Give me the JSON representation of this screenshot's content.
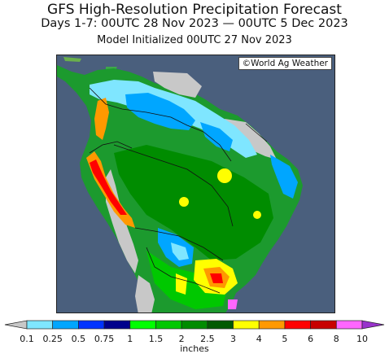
{
  "header": {
    "title": "GFS High-Resolution Precipitation Forecast",
    "period": "Days 1-7: 00UTC 28 Nov 2023 — 00UTC 5 Dec 2023",
    "init": "Model Initialized 00UTC 27 Nov 2023"
  },
  "map": {
    "credit": "©World Ag Weather",
    "ocean_color": "#4a5f7d",
    "land_dry_color": "#c8c8c8"
  },
  "colorbar": {
    "units": "inches",
    "ticks": [
      "0.1",
      "0.25",
      "0.5",
      "0.75",
      "1",
      "1.5",
      "2",
      "2.5",
      "3",
      "4",
      "5",
      "6",
      "8",
      "10"
    ],
    "colors": [
      "#c8c8c8",
      "#7fe6ff",
      "#00a6ff",
      "#0033ff",
      "#00008c",
      "#00ff00",
      "#00c800",
      "#008c00",
      "#005a00",
      "#ffff00",
      "#ff9900",
      "#ff0000",
      "#c80000",
      "#ff66ff",
      "#9933cc"
    ]
  }
}
